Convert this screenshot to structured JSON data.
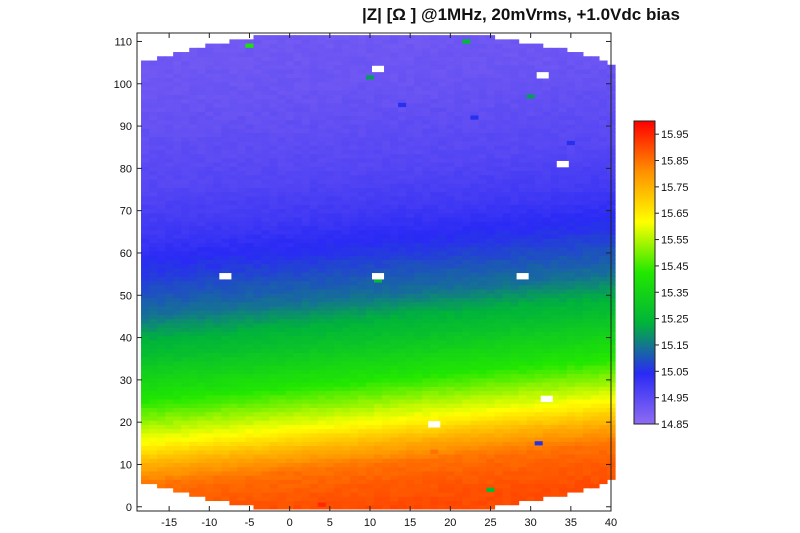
{
  "chart_data": {
    "type": "heatmap",
    "title": "|Z| [Ω ] @1MHz, 20mVrms, +1.0Vdc bias",
    "xlabel": "",
    "ylabel": "",
    "xlim": [
      -19,
      40
    ],
    "ylim": [
      -1,
      112
    ],
    "x_ticks": [
      -15,
      -10,
      -5,
      0,
      5,
      10,
      15,
      20,
      25,
      30,
      35,
      40
    ],
    "y_ticks": [
      0,
      10,
      20,
      30,
      40,
      50,
      60,
      70,
      80,
      90,
      100,
      110
    ],
    "colorbar": {
      "min": 14.85,
      "max": 16.0,
      "ticks": [
        14.85,
        14.95,
        15.05,
        15.15,
        15.25,
        15.35,
        15.45,
        15.55,
        15.65,
        15.75,
        15.85,
        15.95
      ],
      "colormap": [
        "#8f6cf2",
        "#2a2af5",
        "#00b43a",
        "#22e800",
        "#ffff00",
        "#ff9000",
        "#ff0000"
      ]
    },
    "wafer": {
      "center_x": 10.6,
      "center_y": 55.5,
      "radius": 57.5
    },
    "z_profile_by_y": {
      "y": [
        0,
        5,
        10,
        15,
        20,
        25,
        30,
        35,
        40,
        45,
        50,
        55,
        60,
        65,
        70,
        80,
        90,
        100,
        112
      ],
      "z": [
        15.9,
        15.88,
        15.85,
        15.75,
        15.62,
        15.52,
        15.42,
        15.35,
        15.28,
        15.22,
        15.14,
        15.1,
        15.06,
        15.03,
        15.0,
        14.96,
        14.94,
        14.92,
        14.91
      ]
    },
    "missing_cells": [
      [
        -8,
        54.5
      ],
      [
        11,
        54.5
      ],
      [
        29,
        54.5
      ],
      [
        11,
        103.5
      ],
      [
        31.5,
        102
      ],
      [
        34,
        81
      ],
      [
        18,
        19.5
      ],
      [
        32,
        25.5
      ]
    ],
    "outlier_cells": [
      {
        "x": -5,
        "y": 109,
        "z": 15.4
      },
      {
        "x": 22,
        "y": 110,
        "z": 15.25
      },
      {
        "x": 10,
        "y": 101.5,
        "z": 15.2
      },
      {
        "x": 14,
        "y": 95,
        "z": 15.05
      },
      {
        "x": 23,
        "y": 92,
        "z": 15.05
      },
      {
        "x": 30,
        "y": 97,
        "z": 15.2
      },
      {
        "x": 35,
        "y": 86,
        "z": 15.05
      },
      {
        "x": 11,
        "y": 53.5,
        "z": 15.25
      },
      {
        "x": 31,
        "y": 15,
        "z": 15.05
      },
      {
        "x": 18,
        "y": 13,
        "z": 15.85
      },
      {
        "x": 33,
        "y": 20.5,
        "z": 15.7
      },
      {
        "x": 25,
        "y": 4,
        "z": 15.25
      },
      {
        "x": 4,
        "y": 0.5,
        "z": 15.95
      }
    ]
  }
}
